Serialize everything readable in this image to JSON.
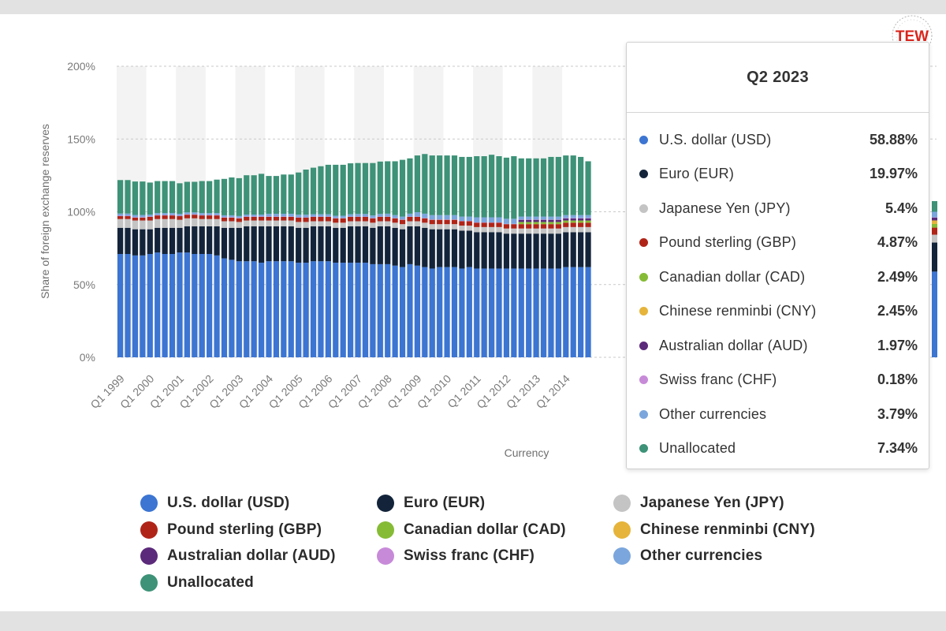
{
  "colors": {
    "USD": "#3c75d2",
    "EUR": "#13243a",
    "JPY": "#c4c4c4",
    "GBP": "#b02418",
    "CAD": "#86bb36",
    "CNY": "#e6b43a",
    "AUD": "#5b2a7a",
    "CHF": "#c78ad8",
    "OTHER": "#7ba6dd",
    "UNALLOC": "#3d9277"
  },
  "logo": {
    "text": "TEW",
    "color": "#d9251c"
  },
  "tooltip": {
    "title": "Q2 2023",
    "rows": [
      {
        "label": "U.S. dollar (USD)",
        "value": "58.88%",
        "color_key": "USD"
      },
      {
        "label": "Euro (EUR)",
        "value": "19.97%",
        "color_key": "EUR"
      },
      {
        "label": "Japanese Yen (JPY)",
        "value": "5.4%",
        "color_key": "JPY"
      },
      {
        "label": "Pound sterling (GBP)",
        "value": "4.87%",
        "color_key": "GBP"
      },
      {
        "label": "Canadian dollar (CAD)",
        "value": "2.49%",
        "color_key": "CAD"
      },
      {
        "label": "Chinese renminbi (CNY)",
        "value": "2.45%",
        "color_key": "CNY"
      },
      {
        "label": "Australian dollar (AUD)",
        "value": "1.97%",
        "color_key": "AUD"
      },
      {
        "label": "Swiss franc (CHF)",
        "value": "0.18%",
        "color_key": "CHF"
      },
      {
        "label": "Other currencies",
        "value": "3.79%",
        "color_key": "OTHER"
      },
      {
        "label": "Unallocated",
        "value": "7.34%",
        "color_key": "UNALLOC"
      }
    ]
  },
  "legend": {
    "items": [
      {
        "label": "U.S. dollar (USD)",
        "color_key": "USD"
      },
      {
        "label": "Euro (EUR)",
        "color_key": "EUR"
      },
      {
        "label": "Japanese Yen (JPY)",
        "color_key": "JPY"
      },
      {
        "label": "Pound sterling (GBP)",
        "color_key": "GBP"
      },
      {
        "label": "Canadian dollar (CAD)",
        "color_key": "CAD"
      },
      {
        "label": "Chinese renminbi (CNY)",
        "color_key": "CNY"
      },
      {
        "label": "Australian dollar (AUD)",
        "color_key": "AUD"
      },
      {
        "label": "Swiss franc (CHF)",
        "color_key": "CHF"
      },
      {
        "label": "Other currencies",
        "color_key": "OTHER"
      },
      {
        "label": "Unallocated",
        "color_key": "UNALLOC"
      }
    ]
  },
  "chart_data": {
    "type": "bar",
    "stacked": true,
    "ylabel": "Share of foreign exchange reserves",
    "xlabel": "Currency",
    "ylim": [
      0,
      200
    ],
    "yticks": [
      "0%",
      "50%",
      "100%",
      "150%",
      "200%"
    ],
    "ytick_values": [
      0,
      50,
      100,
      150,
      200
    ],
    "x_tick_labels": [
      "Q1 1999",
      "Q1 2000",
      "Q1 2001",
      "Q1 2002",
      "Q1 2003",
      "Q1 2004",
      "Q1 2005",
      "Q1 2006",
      "Q1 2007",
      "Q1 2008",
      "Q1 2009",
      "Q1 2010",
      "Q1 2011",
      "Q1 2012",
      "Q1 2013",
      "Q1 2014"
    ],
    "categories": [
      "Q1 1999",
      "Q2 1999",
      "Q3 1999",
      "Q4 1999",
      "Q1 2000",
      "Q2 2000",
      "Q3 2000",
      "Q4 2000",
      "Q1 2001",
      "Q2 2001",
      "Q3 2001",
      "Q4 2001",
      "Q1 2002",
      "Q2 2002",
      "Q3 2002",
      "Q4 2002",
      "Q1 2003",
      "Q2 2003",
      "Q3 2003",
      "Q4 2003",
      "Q1 2004",
      "Q2 2004",
      "Q3 2004",
      "Q4 2004",
      "Q1 2005",
      "Q2 2005",
      "Q3 2005",
      "Q4 2005",
      "Q1 2006",
      "Q2 2006",
      "Q3 2006",
      "Q4 2006",
      "Q1 2007",
      "Q2 2007",
      "Q3 2007",
      "Q4 2007",
      "Q1 2008",
      "Q2 2008",
      "Q3 2008",
      "Q4 2008",
      "Q1 2009",
      "Q2 2009",
      "Q3 2009",
      "Q4 2009",
      "Q1 2010",
      "Q2 2010",
      "Q3 2010",
      "Q4 2010",
      "Q1 2011",
      "Q2 2011",
      "Q3 2011",
      "Q4 2011",
      "Q1 2012",
      "Q2 2012",
      "Q3 2012",
      "Q4 2012",
      "Q1 2013",
      "Q2 2013",
      "Q3 2013",
      "Q4 2013",
      "Q1 2014",
      "Q2 2014",
      "Q3 2014",
      "Q4 2014",
      "Q2 2023"
    ],
    "series": [
      {
        "name": "U.S. dollar (USD)",
        "color_key": "USD",
        "values": [
          71,
          71,
          70,
          70,
          71,
          72,
          71,
          71,
          72,
          72,
          71,
          71,
          71,
          70,
          68,
          67,
          66,
          66,
          66,
          65,
          66,
          66,
          66,
          66,
          65,
          65,
          66,
          66,
          66,
          65,
          65,
          65,
          65,
          65,
          64,
          64,
          64,
          63,
          62,
          64,
          63,
          62,
          61,
          62,
          62,
          62,
          61,
          62,
          61,
          61,
          61,
          61,
          61,
          61,
          61,
          61,
          61,
          61,
          61,
          61,
          62,
          62,
          62,
          62,
          58.88
        ]
      },
      {
        "name": "Euro (EUR)",
        "color_key": "EUR",
        "values": [
          18,
          18,
          18,
          18,
          17,
          17,
          18,
          18,
          17,
          18,
          19,
          19,
          19,
          20,
          21,
          22,
          23,
          24,
          24,
          25,
          24,
          24,
          24,
          24,
          24,
          24,
          24,
          24,
          24,
          24,
          24,
          25,
          25,
          25,
          25,
          26,
          26,
          26,
          26,
          26,
          27,
          27,
          27,
          26,
          26,
          26,
          26,
          25,
          25,
          25,
          25,
          25,
          24,
          24,
          24,
          24,
          24,
          24,
          24,
          24,
          24,
          24,
          24,
          24,
          19.97
        ]
      },
      {
        "name": "Japanese Yen (JPY)",
        "color_key": "JPY",
        "values": [
          6,
          6,
          6,
          6,
          6,
          6,
          6,
          6,
          5.5,
          5.5,
          5.5,
          5,
          5,
          5,
          4.5,
          4.5,
          4,
          4,
          4,
          4,
          4,
          4,
          4,
          4,
          4,
          4,
          3.5,
          3.5,
          3.5,
          3.5,
          3.5,
          3.5,
          3.5,
          3.5,
          3.5,
          3.5,
          3.5,
          3.5,
          3.5,
          3.5,
          3.5,
          3.5,
          3.5,
          3.5,
          3.5,
          3.5,
          3.5,
          3.5,
          3.5,
          3.5,
          3.5,
          3.5,
          3.5,
          3.5,
          3.5,
          3.5,
          3.5,
          3.5,
          3.5,
          3.5,
          3.5,
          3.5,
          3.5,
          3.5,
          5.4
        ]
      },
      {
        "name": "Pound sterling (GBP)",
        "color_key": "GBP",
        "values": [
          2,
          2,
          2,
          2,
          2.5,
          2.5,
          2.5,
          2.5,
          2.5,
          2.5,
          2.5,
          2.5,
          2.5,
          2.5,
          2.5,
          2.5,
          2.5,
          2.5,
          2.5,
          2.5,
          2.5,
          2.5,
          2.5,
          2.5,
          3,
          3,
          3,
          3,
          3,
          3,
          3,
          3,
          3,
          3,
          3,
          3,
          3,
          3,
          3,
          3,
          3,
          3,
          3,
          3,
          3,
          3,
          3,
          3,
          3,
          3,
          3,
          3,
          3,
          3,
          3,
          3,
          3,
          3,
          3,
          3,
          3,
          3,
          3,
          3,
          4.87
        ]
      },
      {
        "name": "Canadian dollar (CAD)",
        "color_key": "CAD",
        "values": [
          0,
          0,
          0,
          0,
          0,
          0,
          0,
          0,
          0,
          0,
          0,
          0,
          0,
          0,
          0,
          0,
          0,
          0,
          0,
          0,
          0,
          0,
          0,
          0,
          0,
          0,
          0,
          0,
          0,
          0,
          0,
          0,
          0,
          0,
          0,
          0,
          0,
          0,
          0,
          0,
          0,
          0,
          0,
          0,
          0,
          0,
          0,
          0,
          0,
          0,
          0,
          0,
          0,
          0,
          1.5,
          1.5,
          1.5,
          1.5,
          1.5,
          1.5,
          1.5,
          1.5,
          1.5,
          1.5,
          2.49
        ]
      },
      {
        "name": "Chinese renminbi (CNY)",
        "color_key": "CNY",
        "values": [
          0,
          0,
          0,
          0,
          0,
          0,
          0,
          0,
          0,
          0,
          0,
          0,
          0,
          0,
          0,
          0,
          0,
          0,
          0,
          0,
          0,
          0,
          0,
          0,
          0,
          0,
          0,
          0,
          0,
          0,
          0,
          0,
          0,
          0,
          0,
          0,
          0,
          0,
          0,
          0,
          0,
          0,
          0,
          0,
          0,
          0,
          0,
          0,
          0,
          0,
          0,
          0,
          0,
          0,
          0,
          0,
          0,
          0,
          0,
          0,
          0,
          0,
          0,
          0,
          2.45
        ]
      },
      {
        "name": "Australian dollar (AUD)",
        "color_key": "AUD",
        "values": [
          0,
          0,
          0,
          0,
          0,
          0,
          0,
          0,
          0,
          0,
          0,
          0,
          0,
          0,
          0,
          0,
          0,
          0,
          0,
          0,
          0,
          0,
          0,
          0,
          0,
          0,
          0,
          0,
          0,
          0,
          0,
          0,
          0,
          0,
          0,
          0,
          0,
          0,
          0,
          0,
          0,
          0,
          0,
          0,
          0,
          0,
          0,
          0,
          0,
          0,
          0,
          0,
          0,
          0,
          1.5,
          1.5,
          1.5,
          1.5,
          1.5,
          1.5,
          1.5,
          1.5,
          1.5,
          1.5,
          1.97
        ]
      },
      {
        "name": "Swiss franc (CHF)",
        "color_key": "CHF",
        "values": [
          0.3,
          0.3,
          0.3,
          0.3,
          0.3,
          0.3,
          0.3,
          0.3,
          0.3,
          0.3,
          0.3,
          0.3,
          0.3,
          0.3,
          0.3,
          0.3,
          0.3,
          0.3,
          0.3,
          0.3,
          0.3,
          0.3,
          0.3,
          0.3,
          0.2,
          0.2,
          0.2,
          0.2,
          0.2,
          0.2,
          0.2,
          0.2,
          0.2,
          0.2,
          0.2,
          0.2,
          0.2,
          0.2,
          0.2,
          0.2,
          0.2,
          0.2,
          0.2,
          0.2,
          0.2,
          0.2,
          0.2,
          0.2,
          0.2,
          0.2,
          0.2,
          0.2,
          0.2,
          0.2,
          0.2,
          0.2,
          0.2,
          0.2,
          0.2,
          0.2,
          0.2,
          0.2,
          0.2,
          0.2,
          0.18
        ]
      },
      {
        "name": "Other currencies",
        "color_key": "OTHER",
        "values": [
          1.5,
          1.5,
          1.5,
          1.5,
          1.3,
          1.3,
          1.3,
          1.3,
          1.3,
          1.3,
          1.3,
          1.3,
          1.3,
          1.3,
          1.3,
          1.3,
          1.3,
          1.3,
          1.3,
          1.3,
          1.8,
          1.8,
          1.8,
          1.8,
          1.8,
          1.8,
          1.6,
          1.6,
          1.6,
          1.6,
          1.6,
          1.6,
          1.8,
          1.8,
          1.8,
          1.8,
          2,
          2,
          2,
          2,
          3,
          3,
          3,
          3,
          3,
          3,
          3,
          3,
          3.5,
          3.5,
          3.5,
          3.5,
          3.5,
          3.5,
          2,
          2,
          2,
          2,
          2,
          2,
          2,
          2,
          2,
          2,
          3.79
        ]
      },
      {
        "name": "Unallocated",
        "color_key": "UNALLOC",
        "values": [
          23,
          23,
          23,
          23,
          22,
          22,
          22,
          22,
          21,
          21,
          21,
          22,
          22,
          23,
          25,
          26,
          26,
          27,
          27,
          28,
          26,
          26,
          27,
          27,
          29,
          31,
          32,
          33,
          34,
          35,
          35,
          35,
          35,
          35,
          36,
          36,
          36,
          37,
          39,
          38,
          39,
          41,
          41,
          41,
          41,
          41,
          41,
          41,
          42,
          42,
          43,
          42,
          42,
          43,
          40,
          40,
          40,
          40,
          41,
          41,
          41,
          41,
          40,
          37,
          7.34
        ]
      }
    ]
  }
}
